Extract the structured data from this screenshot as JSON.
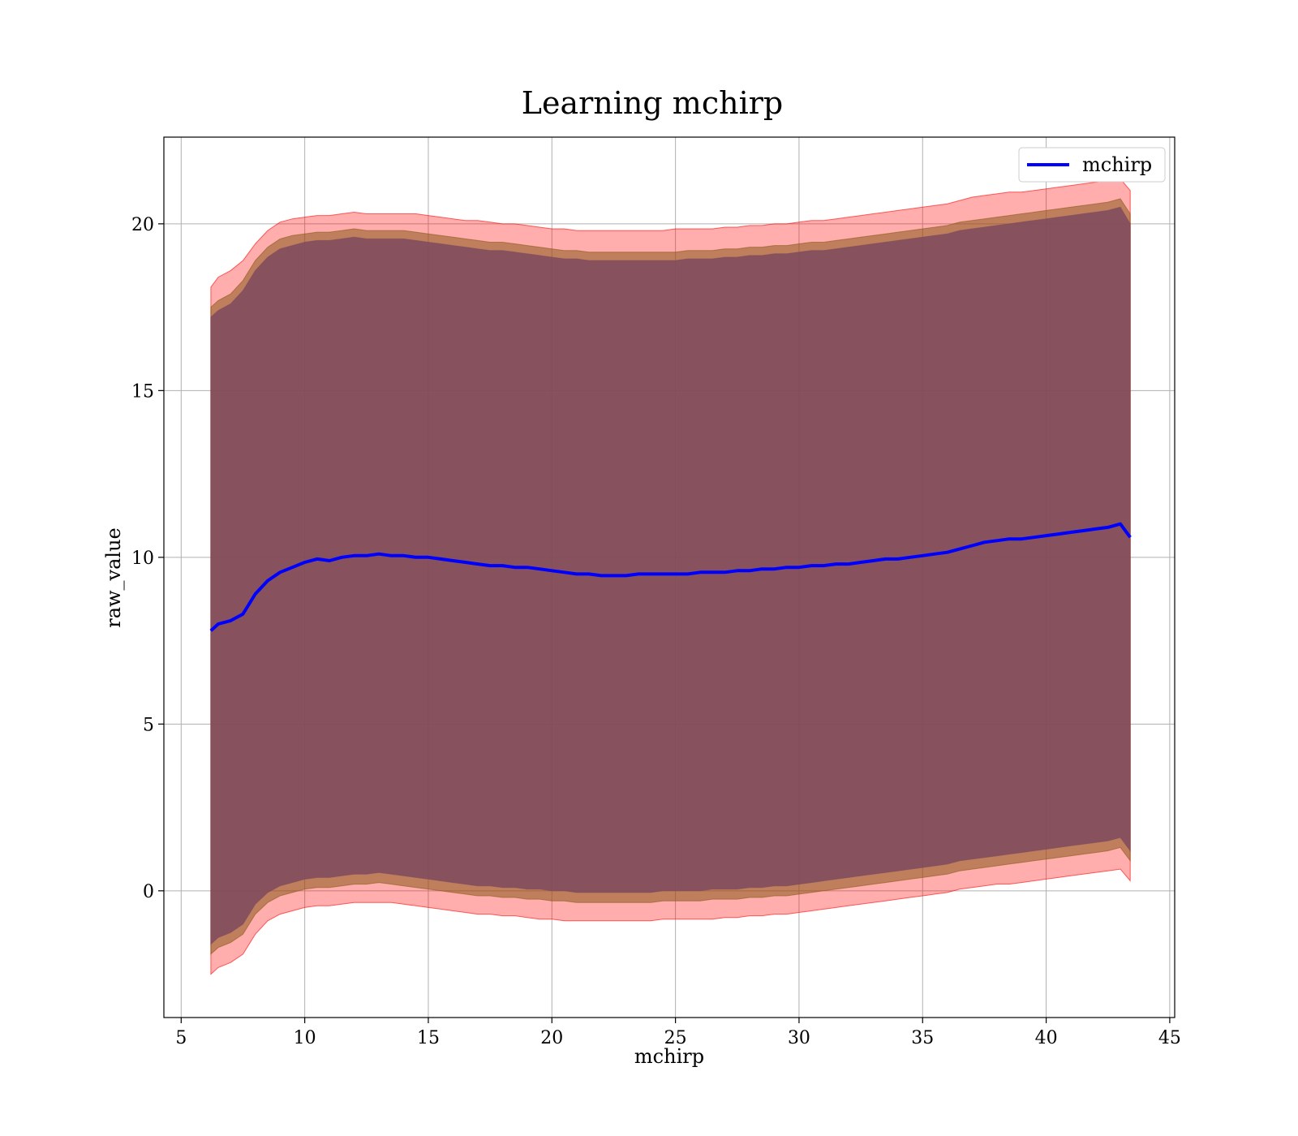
{
  "chart_data": {
    "type": "line",
    "title": "Learning mchirp",
    "xlabel": "mchirp",
    "ylabel": "raw_value",
    "xlim": [
      4.3,
      45.2
    ],
    "ylim": [
      -3.8,
      22.6
    ],
    "xticks": [
      5,
      10,
      15,
      20,
      25,
      30,
      35,
      40,
      45
    ],
    "yticks": [
      0,
      5,
      10,
      15,
      20
    ],
    "grid": true,
    "legend_position": "top-right",
    "series": [
      {
        "name": "mchirp",
        "color": "#0000ff",
        "x": [
          6.2,
          6.5,
          7.0,
          7.5,
          8.0,
          8.5,
          9.0,
          9.5,
          10.0,
          10.5,
          11.0,
          11.5,
          12.0,
          12.5,
          13.0,
          13.5,
          14.0,
          14.5,
          15.0,
          15.5,
          16.0,
          16.5,
          17.0,
          17.5,
          18.0,
          18.5,
          19.0,
          19.5,
          20.0,
          20.5,
          21.0,
          21.5,
          22.0,
          22.5,
          23.0,
          23.5,
          24.0,
          24.5,
          25.0,
          25.5,
          26.0,
          26.5,
          27.0,
          27.5,
          28.0,
          28.5,
          29.0,
          29.5,
          30.0,
          30.5,
          31.0,
          31.5,
          32.0,
          32.5,
          33.0,
          33.5,
          34.0,
          34.5,
          35.0,
          35.5,
          36.0,
          36.5,
          37.0,
          37.5,
          38.0,
          38.5,
          39.0,
          39.5,
          40.0,
          40.5,
          41.0,
          41.5,
          42.0,
          42.5,
          43.0,
          43.4
        ],
        "y": [
          7.8,
          8.0,
          8.1,
          8.3,
          8.9,
          9.3,
          9.55,
          9.7,
          9.85,
          9.95,
          9.9,
          10.0,
          10.05,
          10.05,
          10.1,
          10.05,
          10.05,
          10.0,
          10.0,
          9.95,
          9.9,
          9.85,
          9.8,
          9.75,
          9.75,
          9.7,
          9.7,
          9.65,
          9.6,
          9.55,
          9.5,
          9.5,
          9.45,
          9.45,
          9.45,
          9.5,
          9.5,
          9.5,
          9.5,
          9.5,
          9.55,
          9.55,
          9.55,
          9.6,
          9.6,
          9.65,
          9.65,
          9.7,
          9.7,
          9.75,
          9.75,
          9.8,
          9.8,
          9.85,
          9.9,
          9.95,
          9.95,
          10.0,
          10.05,
          10.1,
          10.15,
          10.25,
          10.35,
          10.45,
          10.5,
          10.55,
          10.55,
          10.6,
          10.65,
          10.7,
          10.75,
          10.8,
          10.85,
          10.9,
          11.0,
          10.6
        ]
      }
    ],
    "bands": [
      {
        "color": "#ff0000",
        "opacity": 0.32,
        "upper": [
          18.1,
          18.4,
          18.6,
          18.9,
          19.4,
          19.8,
          20.05,
          20.15,
          20.2,
          20.25,
          20.25,
          20.3,
          20.35,
          20.3,
          20.3,
          20.3,
          20.3,
          20.3,
          20.25,
          20.2,
          20.15,
          20.1,
          20.1,
          20.05,
          20.0,
          20.0,
          19.95,
          19.9,
          19.85,
          19.85,
          19.8,
          19.8,
          19.8,
          19.8,
          19.8,
          19.8,
          19.8,
          19.8,
          19.85,
          19.85,
          19.85,
          19.85,
          19.9,
          19.9,
          19.95,
          19.95,
          20.0,
          20.0,
          20.05,
          20.1,
          20.1,
          20.15,
          20.2,
          20.25,
          20.3,
          20.35,
          20.4,
          20.45,
          20.5,
          20.55,
          20.6,
          20.7,
          20.8,
          20.85,
          20.9,
          20.95,
          20.95,
          21.0,
          21.05,
          21.1,
          21.15,
          21.2,
          21.25,
          21.3,
          21.35,
          21.0
        ],
        "lower": [
          -2.5,
          -2.3,
          -2.15,
          -1.9,
          -1.3,
          -0.9,
          -0.7,
          -0.6,
          -0.5,
          -0.45,
          -0.45,
          -0.4,
          -0.35,
          -0.35,
          -0.35,
          -0.35,
          -0.4,
          -0.45,
          -0.5,
          -0.55,
          -0.6,
          -0.65,
          -0.7,
          -0.7,
          -0.75,
          -0.75,
          -0.8,
          -0.85,
          -0.85,
          -0.9,
          -0.9,
          -0.9,
          -0.9,
          -0.9,
          -0.9,
          -0.9,
          -0.9,
          -0.85,
          -0.85,
          -0.85,
          -0.85,
          -0.85,
          -0.8,
          -0.8,
          -0.75,
          -0.75,
          -0.7,
          -0.7,
          -0.65,
          -0.6,
          -0.55,
          -0.5,
          -0.45,
          -0.4,
          -0.35,
          -0.3,
          -0.25,
          -0.2,
          -0.15,
          -0.1,
          -0.05,
          0.05,
          0.1,
          0.15,
          0.2,
          0.2,
          0.25,
          0.3,
          0.35,
          0.4,
          0.45,
          0.5,
          0.55,
          0.6,
          0.65,
          0.3
        ]
      },
      {
        "color": "#8b5a1a",
        "opacity": 0.55,
        "upper": [
          17.5,
          17.7,
          17.9,
          18.3,
          18.9,
          19.3,
          19.55,
          19.65,
          19.7,
          19.75,
          19.75,
          19.8,
          19.85,
          19.8,
          19.8,
          19.8,
          19.8,
          19.75,
          19.7,
          19.65,
          19.6,
          19.55,
          19.5,
          19.45,
          19.45,
          19.4,
          19.35,
          19.3,
          19.25,
          19.2,
          19.2,
          19.15,
          19.15,
          19.15,
          19.15,
          19.15,
          19.15,
          19.15,
          19.15,
          19.2,
          19.2,
          19.2,
          19.25,
          19.25,
          19.3,
          19.3,
          19.35,
          19.35,
          19.4,
          19.45,
          19.45,
          19.5,
          19.55,
          19.6,
          19.65,
          19.7,
          19.75,
          19.8,
          19.85,
          19.9,
          19.95,
          20.05,
          20.1,
          20.15,
          20.2,
          20.25,
          20.3,
          20.35,
          20.4,
          20.45,
          20.5,
          20.55,
          20.6,
          20.65,
          20.75,
          20.3
        ],
        "lower": [
          -1.9,
          -1.7,
          -1.55,
          -1.3,
          -0.7,
          -0.35,
          -0.15,
          -0.05,
          0.05,
          0.1,
          0.1,
          0.15,
          0.2,
          0.2,
          0.25,
          0.2,
          0.15,
          0.1,
          0.05,
          0.0,
          -0.05,
          -0.1,
          -0.15,
          -0.15,
          -0.2,
          -0.2,
          -0.25,
          -0.25,
          -0.3,
          -0.3,
          -0.35,
          -0.35,
          -0.35,
          -0.35,
          -0.35,
          -0.35,
          -0.35,
          -0.3,
          -0.3,
          -0.3,
          -0.3,
          -0.25,
          -0.25,
          -0.25,
          -0.2,
          -0.2,
          -0.15,
          -0.15,
          -0.1,
          -0.05,
          0.0,
          0.05,
          0.1,
          0.15,
          0.2,
          0.25,
          0.3,
          0.35,
          0.4,
          0.45,
          0.5,
          0.6,
          0.65,
          0.7,
          0.75,
          0.8,
          0.85,
          0.9,
          0.95,
          1.0,
          1.05,
          1.1,
          1.15,
          1.2,
          1.3,
          0.9
        ]
      },
      {
        "color": "#7d4a5e",
        "opacity": 0.85,
        "upper": [
          17.2,
          17.4,
          17.6,
          18.0,
          18.6,
          19.0,
          19.25,
          19.35,
          19.45,
          19.5,
          19.5,
          19.55,
          19.6,
          19.55,
          19.55,
          19.55,
          19.55,
          19.5,
          19.45,
          19.4,
          19.35,
          19.3,
          19.25,
          19.2,
          19.2,
          19.15,
          19.1,
          19.05,
          19.0,
          18.95,
          18.95,
          18.9,
          18.9,
          18.9,
          18.9,
          18.9,
          18.9,
          18.9,
          18.9,
          18.95,
          18.95,
          18.95,
          19.0,
          19.0,
          19.05,
          19.05,
          19.1,
          19.1,
          19.15,
          19.2,
          19.2,
          19.25,
          19.3,
          19.35,
          19.4,
          19.45,
          19.5,
          19.55,
          19.6,
          19.65,
          19.7,
          19.8,
          19.85,
          19.9,
          19.95,
          20.0,
          20.05,
          20.1,
          20.15,
          20.2,
          20.25,
          20.3,
          20.35,
          20.4,
          20.5,
          20.0
        ],
        "lower": [
          -1.6,
          -1.4,
          -1.25,
          -1.0,
          -0.4,
          -0.05,
          0.15,
          0.25,
          0.35,
          0.4,
          0.4,
          0.45,
          0.5,
          0.5,
          0.55,
          0.5,
          0.45,
          0.4,
          0.35,
          0.3,
          0.25,
          0.2,
          0.15,
          0.15,
          0.1,
          0.1,
          0.05,
          0.05,
          0.0,
          0.0,
          -0.05,
          -0.05,
          -0.05,
          -0.05,
          -0.05,
          -0.05,
          -0.05,
          0.0,
          0.0,
          0.0,
          0.0,
          0.05,
          0.05,
          0.05,
          0.1,
          0.1,
          0.15,
          0.15,
          0.2,
          0.25,
          0.3,
          0.35,
          0.4,
          0.45,
          0.5,
          0.55,
          0.6,
          0.65,
          0.7,
          0.75,
          0.8,
          0.9,
          0.95,
          1.0,
          1.05,
          1.1,
          1.15,
          1.2,
          1.25,
          1.3,
          1.35,
          1.4,
          1.45,
          1.5,
          1.6,
          1.2
        ]
      }
    ]
  }
}
